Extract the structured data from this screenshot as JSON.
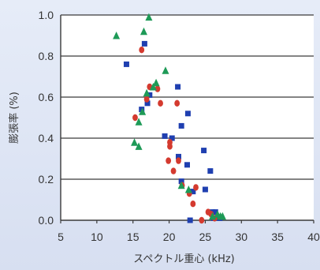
{
  "chart_data": {
    "type": "scatter",
    "title": "",
    "xlabel": "スペクトル重心 (kHz)",
    "ylabel": "膨張率 (%)",
    "xlim": [
      5,
      40
    ],
    "ylim": [
      0,
      1.0
    ],
    "xticks": [
      "5",
      "10",
      "15",
      "20",
      "25",
      "30",
      "35",
      "40"
    ],
    "yticks": [
      "0.0",
      "0.2",
      "0.4",
      "0.6",
      "0.8",
      "1.0"
    ],
    "grid": "horizontal",
    "legend": "none",
    "series": [
      {
        "marker": "square",
        "color": "#1f3fb0",
        "points": [
          [
            16.6,
            0.86
          ],
          [
            14.1,
            0.76
          ],
          [
            21.2,
            0.65
          ],
          [
            17.3,
            0.61
          ],
          [
            17.0,
            0.57
          ],
          [
            16.2,
            0.54
          ],
          [
            22.6,
            0.52
          ],
          [
            21.7,
            0.46
          ],
          [
            19.4,
            0.41
          ],
          [
            20.4,
            0.4
          ],
          [
            21.3,
            0.31
          ],
          [
            24.8,
            0.34
          ],
          [
            22.5,
            0.27
          ],
          [
            25.7,
            0.24
          ],
          [
            21.7,
            0.19
          ],
          [
            23.3,
            0.14
          ],
          [
            25.0,
            0.15
          ],
          [
            26.0,
            0.04
          ],
          [
            26.4,
            0.04
          ],
          [
            22.9,
            0.0
          ],
          [
            26.2,
            0.01
          ],
          [
            27.0,
            0.01
          ]
        ]
      },
      {
        "marker": "circle",
        "color": "#d43a2f",
        "points": [
          [
            16.2,
            0.83
          ],
          [
            17.3,
            0.65
          ],
          [
            18.4,
            0.64
          ],
          [
            16.9,
            0.59
          ],
          [
            18.8,
            0.57
          ],
          [
            21.1,
            0.57
          ],
          [
            15.3,
            0.5
          ],
          [
            20.1,
            0.38
          ],
          [
            20.1,
            0.36
          ],
          [
            21.3,
            0.29
          ],
          [
            19.9,
            0.29
          ],
          [
            20.6,
            0.24
          ],
          [
            21.8,
            0.17
          ],
          [
            22.8,
            0.13
          ],
          [
            23.7,
            0.16
          ],
          [
            23.3,
            0.08
          ],
          [
            25.4,
            0.04
          ],
          [
            24.5,
            0.0
          ],
          [
            25.8,
            0.03
          ],
          [
            26.3,
            0.01
          ]
        ]
      },
      {
        "marker": "triangle",
        "color": "#1e9a57",
        "points": [
          [
            17.2,
            0.99
          ],
          [
            16.5,
            0.92
          ],
          [
            12.7,
            0.9
          ],
          [
            19.5,
            0.73
          ],
          [
            18.2,
            0.67
          ],
          [
            17.8,
            0.65
          ],
          [
            16.9,
            0.62
          ],
          [
            16.3,
            0.53
          ],
          [
            15.8,
            0.48
          ],
          [
            15.2,
            0.38
          ],
          [
            15.8,
            0.36
          ],
          [
            21.7,
            0.17
          ],
          [
            22.7,
            0.15
          ],
          [
            26.0,
            0.02
          ],
          [
            26.7,
            0.03
          ],
          [
            27.1,
            0.02
          ],
          [
            27.4,
            0.02
          ]
        ]
      }
    ]
  }
}
